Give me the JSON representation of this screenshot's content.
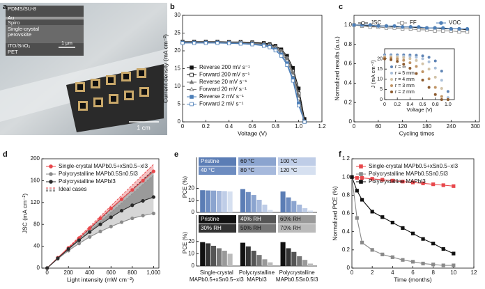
{
  "photo": {
    "panel": "a",
    "layers": [
      "PDMS/SU-8",
      "Au",
      "Spiro",
      "Single-crystal",
      "perovskite",
      "ITO/SnO₂",
      "PET"
    ],
    "sem_scale": "1 μm",
    "photo_scale": "1 cm"
  },
  "chart_data": [
    {
      "panel": "b",
      "type": "line",
      "xlabel": "Voltage (V)",
      "ylabel": "Current density (mA cm⁻²)",
      "xlim": [
        0,
        1.2
      ],
      "xticks": [
        0,
        0.2,
        0.4,
        0.6,
        0.8,
        {
          "value": 1,
          "label": "1.0"
        },
        1.2
      ],
      "ylim": [
        0,
        30
      ],
      "yticks": [
        0,
        5,
        10,
        15,
        20,
        25,
        30
      ],
      "x": [
        0,
        0.1,
        0.2,
        0.3,
        0.4,
        0.5,
        0.6,
        0.7,
        0.75,
        0.8,
        0.85,
        0.9,
        0.95,
        1.0,
        1.05
      ],
      "series": [
        {
          "name": "Reverse 200 mV s⁻¹",
          "color": "#111111",
          "marker": "square",
          "filled": true,
          "values": [
            22.6,
            22.6,
            22.6,
            22.6,
            22.5,
            22.5,
            22.4,
            22.2,
            21.9,
            21.4,
            20.4,
            18.6,
            15.2,
            9.4,
            0.8
          ]
        },
        {
          "name": "Forward 200 mV s⁻¹",
          "color": "#111111",
          "marker": "square",
          "filled": false,
          "values": [
            22.5,
            22.5,
            22.5,
            22.5,
            22.4,
            22.4,
            22.3,
            22.0,
            21.7,
            21.1,
            20.0,
            18.0,
            14.3,
            8.0,
            0.2
          ]
        },
        {
          "name": "Reverse 20 mV s⁻¹",
          "color": "#777777",
          "marker": "triangle",
          "filled": true,
          "values": [
            22.5,
            22.5,
            22.5,
            22.5,
            22.4,
            22.4,
            22.2,
            21.9,
            21.6,
            21.0,
            19.9,
            17.8,
            14.0,
            7.4,
            0.1
          ]
        },
        {
          "name": "Forward 20 mV s⁻¹",
          "color": "#777777",
          "marker": "triangle",
          "filled": false,
          "values": [
            22.4,
            22.4,
            22.4,
            22.4,
            22.3,
            22.3,
            22.1,
            21.8,
            21.4,
            20.7,
            19.5,
            17.2,
            13.2,
            6.6,
            0
          ]
        },
        {
          "name": "Reverse 2 mV s⁻¹",
          "color": "#4d7fb8",
          "marker": "square",
          "filled": true,
          "values": [
            22.3,
            22.3,
            22.3,
            22.3,
            22.2,
            22.1,
            21.9,
            21.6,
            21.2,
            20.4,
            19.0,
            16.5,
            12.2,
            5.2,
            0
          ]
        },
        {
          "name": "Forward 2 mV s⁻¹",
          "color": "#4d7fb8",
          "marker": "square",
          "filled": false,
          "values": [
            22.2,
            22.2,
            22.2,
            22.2,
            22.1,
            22.0,
            21.8,
            21.4,
            21.0,
            20.1,
            18.6,
            16.0,
            11.6,
            4.6,
            0
          ]
        }
      ]
    },
    {
      "panel": "c",
      "type": "line",
      "xlabel": "Cycling times",
      "ylabel": "Normalized results (a.u.)",
      "xlim": [
        0,
        310
      ],
      "xticks": [
        0,
        60,
        120,
        180,
        240,
        300
      ],
      "ylim": [
        0,
        1.1
      ],
      "yticks": [
        0,
        0.2,
        0.4,
        0.6,
        0.8,
        {
          "value": 1,
          "label": "1.0"
        }
      ],
      "x": [
        0,
        20,
        40,
        60,
        80,
        100,
        120,
        140,
        160,
        180,
        200,
        220,
        240,
        260,
        280
      ],
      "series": [
        {
          "name": "JSC",
          "color": "#111111",
          "marker": "circle",
          "filled": false,
          "values": [
            1,
            1,
            0.99,
            0.99,
            0.99,
            0.98,
            0.98,
            0.98,
            0.97,
            0.97,
            0.97,
            0.96,
            0.96,
            0.96,
            0.95
          ]
        },
        {
          "name": "FF",
          "color": "#888888",
          "marker": "square",
          "filled": false,
          "values": [
            1,
            0.99,
            0.98,
            0.98,
            0.97,
            0.97,
            0.96,
            0.96,
            0.95,
            0.95,
            0.94,
            0.94,
            0.94,
            0.93,
            0.93
          ]
        },
        {
          "name": "VOC",
          "color": "#4d7fb8",
          "marker": "circle",
          "filled": true,
          "values": [
            1,
            1,
            1,
            0.99,
            0.99,
            0.99,
            0.98,
            0.98,
            0.98,
            0.97,
            0.97,
            0.97,
            0.96,
            0.96,
            0.96
          ]
        }
      ],
      "inset": {
        "type": "scatter",
        "xlabel": "Voltage (V)",
        "ylabel": "J (mA cm⁻²)",
        "xlim": [
          0,
          1.1
        ],
        "xticks": [
          0,
          0.2,
          0.4,
          0.6,
          0.8,
          {
            "value": 1,
            "label": "1.0"
          }
        ],
        "ylim": [
          0,
          25
        ],
        "yticks": [
          0,
          5,
          10,
          15,
          20
        ],
        "x": [
          0,
          0.1,
          0.2,
          0.3,
          0.4,
          0.5,
          0.6,
          0.7,
          0.8,
          0.9,
          1.0
        ],
        "series": [
          {
            "name": "r = ∞",
            "color": "#5f84b5",
            "marker": "circle",
            "filled": true,
            "values": [
              22,
              22,
              22,
              22,
              21.9,
              21.8,
              21.5,
              20.8,
              19,
              14,
              4
            ]
          },
          {
            "name": "r = 5 mm",
            "color": "#a9bfd9",
            "marker": "circle",
            "filled": true,
            "values": [
              21.5,
              21.5,
              21.4,
              21.3,
              21.1,
              20.8,
              20.1,
              18.6,
              15.5,
              9.5,
              1
            ]
          },
          {
            "name": "r = 4 mm",
            "color": "#d2c3a8",
            "marker": "circle",
            "filled": true,
            "values": [
              21,
              21,
              20.9,
              20.6,
              20.1,
              19.2,
              17.6,
              15,
              11,
              5.5,
              0
            ]
          },
          {
            "name": "r = 3 mm",
            "color": "#c09465",
            "marker": "circle",
            "filled": true,
            "values": [
              20.5,
              20.4,
              20,
              19.3,
              18.1,
              16.3,
              13.7,
              10.2,
              6,
              1.5,
              0
            ]
          },
          {
            "name": "r = 2 mm",
            "color": "#8c5a2e",
            "marker": "circle",
            "filled": true,
            "values": [
              20,
              19.6,
              18.8,
              17.4,
              15.4,
              12.8,
              9.6,
              6,
              2.5,
              0,
              0
            ]
          }
        ]
      }
    },
    {
      "panel": "d",
      "type": "line",
      "xlabel": "Light intensity (mW cm⁻²)",
      "ylabel": "JSC (mA cm⁻²)",
      "xlim": [
        -50,
        1050
      ],
      "xticks": [
        0,
        200,
        400,
        600,
        800,
        {
          "value": 1000,
          "label": "1,000"
        }
      ],
      "ylim": [
        0,
        200
      ],
      "yticks": [
        0,
        40,
        80,
        120,
        160,
        200
      ],
      "x": [
        0,
        100,
        200,
        300,
        400,
        500,
        600,
        700,
        800,
        900,
        1000
      ],
      "series": [
        {
          "name": "Single-crystal MAPb0.5+xSn0.5−xI3",
          "color": "#e8474b",
          "marker": "circle",
          "filled": true,
          "values": [
            0,
            19,
            37,
            55,
            73,
            91,
            109,
            126,
            143,
            160,
            177
          ]
        },
        {
          "name": "Polycrystalline MAPb0.5Sn0.5I3",
          "color": "#8a8a8a",
          "marker": "circle",
          "filled": true,
          "values": [
            0,
            17,
            32,
            45,
            57,
            67,
            76,
            84,
            91,
            96,
            100
          ]
        },
        {
          "name": "Polycrystalline MAPbI3",
          "color": "#2b2b2b",
          "marker": "circle",
          "filled": true,
          "values": [
            0,
            18,
            35,
            51,
            66,
            80,
            93,
            105,
            115,
            123,
            130
          ]
        }
      ],
      "ideal_label": "Ideal cases",
      "ideal": [
        {
          "color": "#e8474b",
          "values": [
            0,
            19,
            38,
            57,
            76,
            95,
            114,
            133,
            152,
            171,
            190
          ]
        },
        {
          "color": "#8a8a8a",
          "values": [
            0,
            17,
            34,
            51,
            68,
            85,
            102,
            119,
            136,
            153,
            170
          ]
        },
        {
          "color": "#2b2b2b",
          "values": [
            0,
            18,
            36,
            54,
            72,
            90,
            108,
            126,
            144,
            162,
            180
          ]
        }
      ]
    },
    {
      "panel": "e",
      "type": "bar",
      "group_labels": [
        [
          "Single-crystal",
          "MAPb0.5+xSn0.5−xI3"
        ],
        [
          "Polycrystalline",
          "MAPbI3"
        ],
        [
          "Polycrystalline",
          "MAPb0.5Sn0.5I3"
        ]
      ],
      "subplots": [
        {
          "ylabel": "PCE (%)",
          "ylim": [
            0,
            25
          ],
          "yticks": [
            0,
            10,
            20
          ],
          "series": [
            {
              "name": "Pristine",
              "color": "#5b7db5",
              "values": [
                18.5,
                19.5,
                17.5
              ]
            },
            {
              "name": "40 °C",
              "color": "#6d8cc0",
              "values": [
                18.3,
                17,
                12.5
              ]
            },
            {
              "name": "60 °C",
              "color": "#8ba4cf",
              "values": [
                18.2,
                14.5,
                9.5
              ]
            },
            {
              "name": "80 °C",
              "color": "#a6b9dc",
              "values": [
                18,
                10.5,
                6.5
              ]
            },
            {
              "name": "100 °C",
              "color": "#bfcde7",
              "values": [
                17.8,
                6.5,
                3.5
              ]
            },
            {
              "name": "120 °C",
              "color": "#d6e0f0",
              "values": [
                17.5,
                2,
                1.5
              ]
            }
          ]
        },
        {
          "ylabel": "PCE (%)",
          "ylim": [
            0,
            25
          ],
          "yticks": [
            0,
            10,
            20
          ],
          "series": [
            {
              "name": "Pristine",
              "color": "#111111",
              "values": [
                19.5,
                19,
                19.5
              ]
            },
            {
              "name": "30% RH",
              "color": "#333333",
              "values": [
                18.5,
                16,
                14.5
              ]
            },
            {
              "name": "40% RH",
              "color": "#555555",
              "values": [
                16.5,
                12.5,
                11.5
              ]
            },
            {
              "name": "50% RH",
              "color": "#777777",
              "values": [
                14.5,
                9,
                8
              ]
            },
            {
              "name": "60% RH",
              "color": "#999999",
              "values": [
                12.5,
                5.5,
                5
              ]
            },
            {
              "name": "70% RH",
              "color": "#bbbbbb",
              "values": [
                10,
                3,
                2
              ]
            }
          ]
        }
      ]
    },
    {
      "panel": "f",
      "type": "line",
      "xlabel": "Time (months)",
      "ylabel": "Normalized PCE (%)",
      "xlim": [
        0,
        12
      ],
      "xticks": [
        0,
        2,
        4,
        6,
        8,
        10,
        12
      ],
      "ylim": [
        0,
        1.2
      ],
      "yticks": [
        0,
        0.2,
        0.4,
        0.6,
        0.8,
        {
          "value": 1,
          "label": "1.0"
        },
        1.2
      ],
      "x": [
        0,
        0.5,
        1,
        2,
        3,
        4,
        5,
        6,
        7,
        8,
        9,
        10
      ],
      "series": [
        {
          "name": "Single-crystal MAPb0.5+xSn0.5−xI3",
          "color": "#e8474b",
          "marker": "square",
          "filled": true,
          "values": [
            1,
            0.99,
            0.99,
            0.98,
            0.97,
            0.96,
            0.95,
            0.94,
            0.93,
            0.92,
            0.91,
            0.9
          ]
        },
        {
          "name": "Polycrystalline MAPb0.5Sn0.5I3",
          "color": "#8a8a8a",
          "marker": "square",
          "filled": true,
          "values": [
            1,
            0.55,
            0.28,
            0.2,
            0.15,
            0.12,
            0.09,
            0.07,
            0.05,
            0.04,
            0.03,
            0.03
          ]
        },
        {
          "name": "Polycrystalline MAPbI3",
          "color": "#111111",
          "marker": "square",
          "filled": true,
          "values": [
            1,
            0.85,
            0.75,
            0.62,
            0.56,
            0.5,
            0.44,
            0.38,
            0.32,
            0.27,
            0.21,
            0.16
          ]
        }
      ]
    }
  ]
}
